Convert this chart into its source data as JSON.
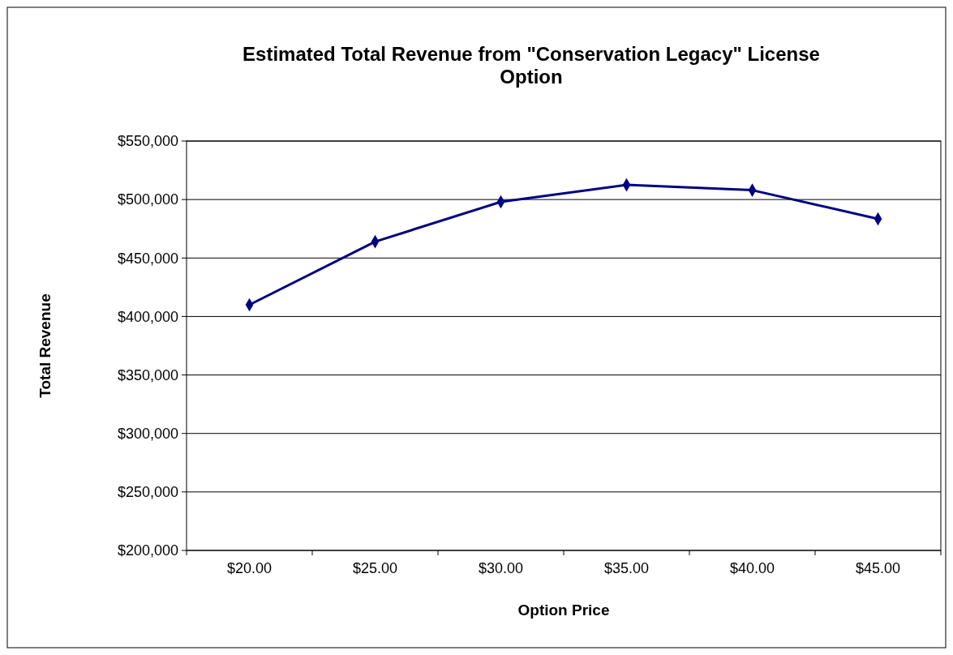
{
  "chart_data": {
    "type": "line",
    "title": "Estimated Total Revenue from \"Conservation Legacy\" License Option",
    "xlabel": "Option Price",
    "ylabel": "Total Revenue",
    "categories": [
      "$20.00",
      "$25.00",
      "$30.00",
      "$35.00",
      "$40.00",
      "$45.00"
    ],
    "series": [
      {
        "color": "#000080",
        "values": [
          410000,
          464000,
          498000,
          512500,
          508000,
          483500
        ]
      }
    ],
    "ylim": [
      200000,
      550000
    ],
    "yticks": [
      {
        "value": 200000,
        "label": "$200,000"
      },
      {
        "value": 250000,
        "label": "$250,000"
      },
      {
        "value": 300000,
        "label": "$300,000"
      },
      {
        "value": 350000,
        "label": "$350,000"
      },
      {
        "value": 400000,
        "label": "$400,000"
      },
      {
        "value": 450000,
        "label": "$450,000"
      },
      {
        "value": 500000,
        "label": "$500,000"
      },
      {
        "value": 550000,
        "label": "$550,000"
      }
    ],
    "grid": "y",
    "marker": "diamond",
    "line_style": "solid"
  }
}
